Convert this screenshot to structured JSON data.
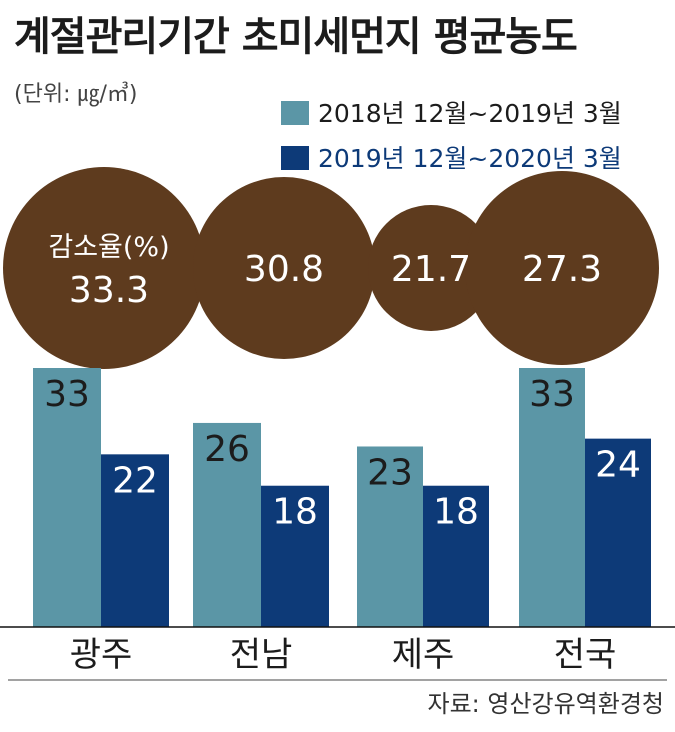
{
  "chart_data": {
    "type": "bar",
    "title": "계절관리기간 초미세먼지 평균농도",
    "unit_label": "(단위: ㎍/㎥)",
    "categories": [
      "광주",
      "전남",
      "제주",
      "전국"
    ],
    "series": [
      {
        "name": "2018년 12월~2019년 3월",
        "values": [
          33,
          26,
          23,
          33
        ],
        "color": "#5b96a6"
      },
      {
        "name": "2019년 12월~2020년 3월",
        "values": [
          22,
          18,
          18,
          24
        ],
        "color": "#0d3a78"
      }
    ],
    "reduction_label": "감소율(%)",
    "reduction_rates": [
      "33.3",
      "30.8",
      "21.7",
      "27.3"
    ],
    "circle_color": "#5e3b1e",
    "ylim": [
      0,
      33
    ],
    "source": "자료: 영산강유역환경청"
  }
}
